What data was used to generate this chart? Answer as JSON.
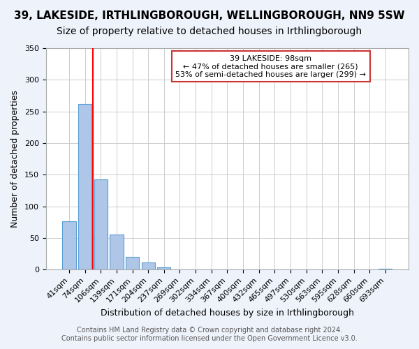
{
  "title": "39, LAKESIDE, IRTHLINGBOROUGH, WELLINGBOROUGH, NN9 5SW",
  "subtitle": "Size of property relative to detached houses in Irthlingborough",
  "xlabel": "Distribution of detached houses by size in Irthlingborough",
  "ylabel": "Number of detached properties",
  "categories": [
    "41sqm",
    "74sqm",
    "106sqm",
    "139sqm",
    "171sqm",
    "204sqm",
    "237sqm",
    "269sqm",
    "302sqm",
    "334sqm",
    "367sqm",
    "400sqm",
    "432sqm",
    "465sqm",
    "497sqm",
    "530sqm",
    "563sqm",
    "595sqm",
    "628sqm",
    "660sqm",
    "693sqm"
  ],
  "values": [
    76,
    262,
    143,
    55,
    20,
    11,
    4,
    0,
    0,
    0,
    0,
    0,
    0,
    0,
    0,
    0,
    0,
    0,
    0,
    0,
    2
  ],
  "bar_color": "#aec6e8",
  "bar_edge_color": "#5a9fd4",
  "red_line_x": 1.5,
  "ylim": [
    0,
    350
  ],
  "yticks": [
    0,
    50,
    100,
    150,
    200,
    250,
    300,
    350
  ],
  "annotation_title": "39 LAKESIDE: 98sqm",
  "annotation_line1": "← 47% of detached houses are smaller (265)",
  "annotation_line2": "53% of semi-detached houses are larger (299) →",
  "footer1": "Contains HM Land Registry data © Crown copyright and database right 2024.",
  "footer2": "Contains public sector information licensed under the Open Government Licence v3.0.",
  "background_color": "#eef2fb",
  "plot_background": "#ffffff",
  "grid_color": "#cccccc",
  "title_fontsize": 11,
  "subtitle_fontsize": 10,
  "axis_fontsize": 9,
  "tick_fontsize": 8,
  "footer_fontsize": 7
}
